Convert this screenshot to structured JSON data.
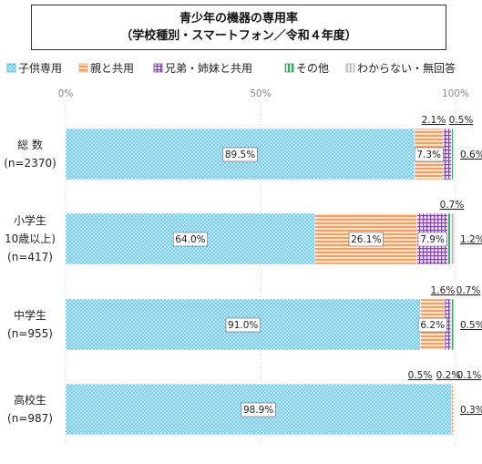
{
  "title": {
    "line1": "青少年の機器の専用率",
    "line2": "（学校種別・スマートフォン／令和４年度）"
  },
  "colors": {
    "series": [
      "#3fb6e3",
      "#f0a060",
      "#7e4a9e",
      "#3aa864",
      "#b8b8b8"
    ],
    "grid": "#c8c8c8",
    "axis_text": "#888888"
  },
  "chart_data": {
    "type": "bar",
    "orientation": "horizontal",
    "stacked": true,
    "xlim": [
      0,
      100
    ],
    "xticks": [
      "0%",
      "50%",
      "100%"
    ],
    "grid": true,
    "legend_position": "top",
    "categories": [
      {
        "line1": "総 数",
        "line2": "(n=2370)"
      },
      {
        "line1": "小学生",
        "line2": "10歳以上)",
        "line3": "(n=417)"
      },
      {
        "line1": "中学生",
        "line2": "(n=955)"
      },
      {
        "line1": "高校生",
        "line2": "(n=987)"
      }
    ],
    "series": [
      {
        "name": "子供専用",
        "values": [
          89.5,
          64.0,
          91.0,
          98.9
        ]
      },
      {
        "name": "親と共用",
        "values": [
          7.3,
          26.1,
          6.2,
          0.5
        ]
      },
      {
        "name": "兄弟・姉妹と共用",
        "values": [
          2.1,
          7.9,
          1.6,
          0.2
        ]
      },
      {
        "name": "その他",
        "values": [
          0.5,
          0.7,
          0.7,
          0.1
        ]
      },
      {
        "name": "わからない・無回答",
        "values": [
          0.6,
          1.2,
          0.5,
          0.3
        ]
      }
    ],
    "data_labels": [
      [
        "89.5%",
        "7.3%",
        "2.1%",
        "0.5%",
        "0.6%"
      ],
      [
        "64.0%",
        "26.1%",
        "7.9%",
        "0.7%",
        "1.2%"
      ],
      [
        "91.0%",
        "6.2%",
        "1.6%",
        "0.7%",
        "0.5%"
      ],
      [
        "98.9%",
        "0.5%",
        "0.2%",
        "0.1%",
        "0.3%"
      ]
    ]
  }
}
